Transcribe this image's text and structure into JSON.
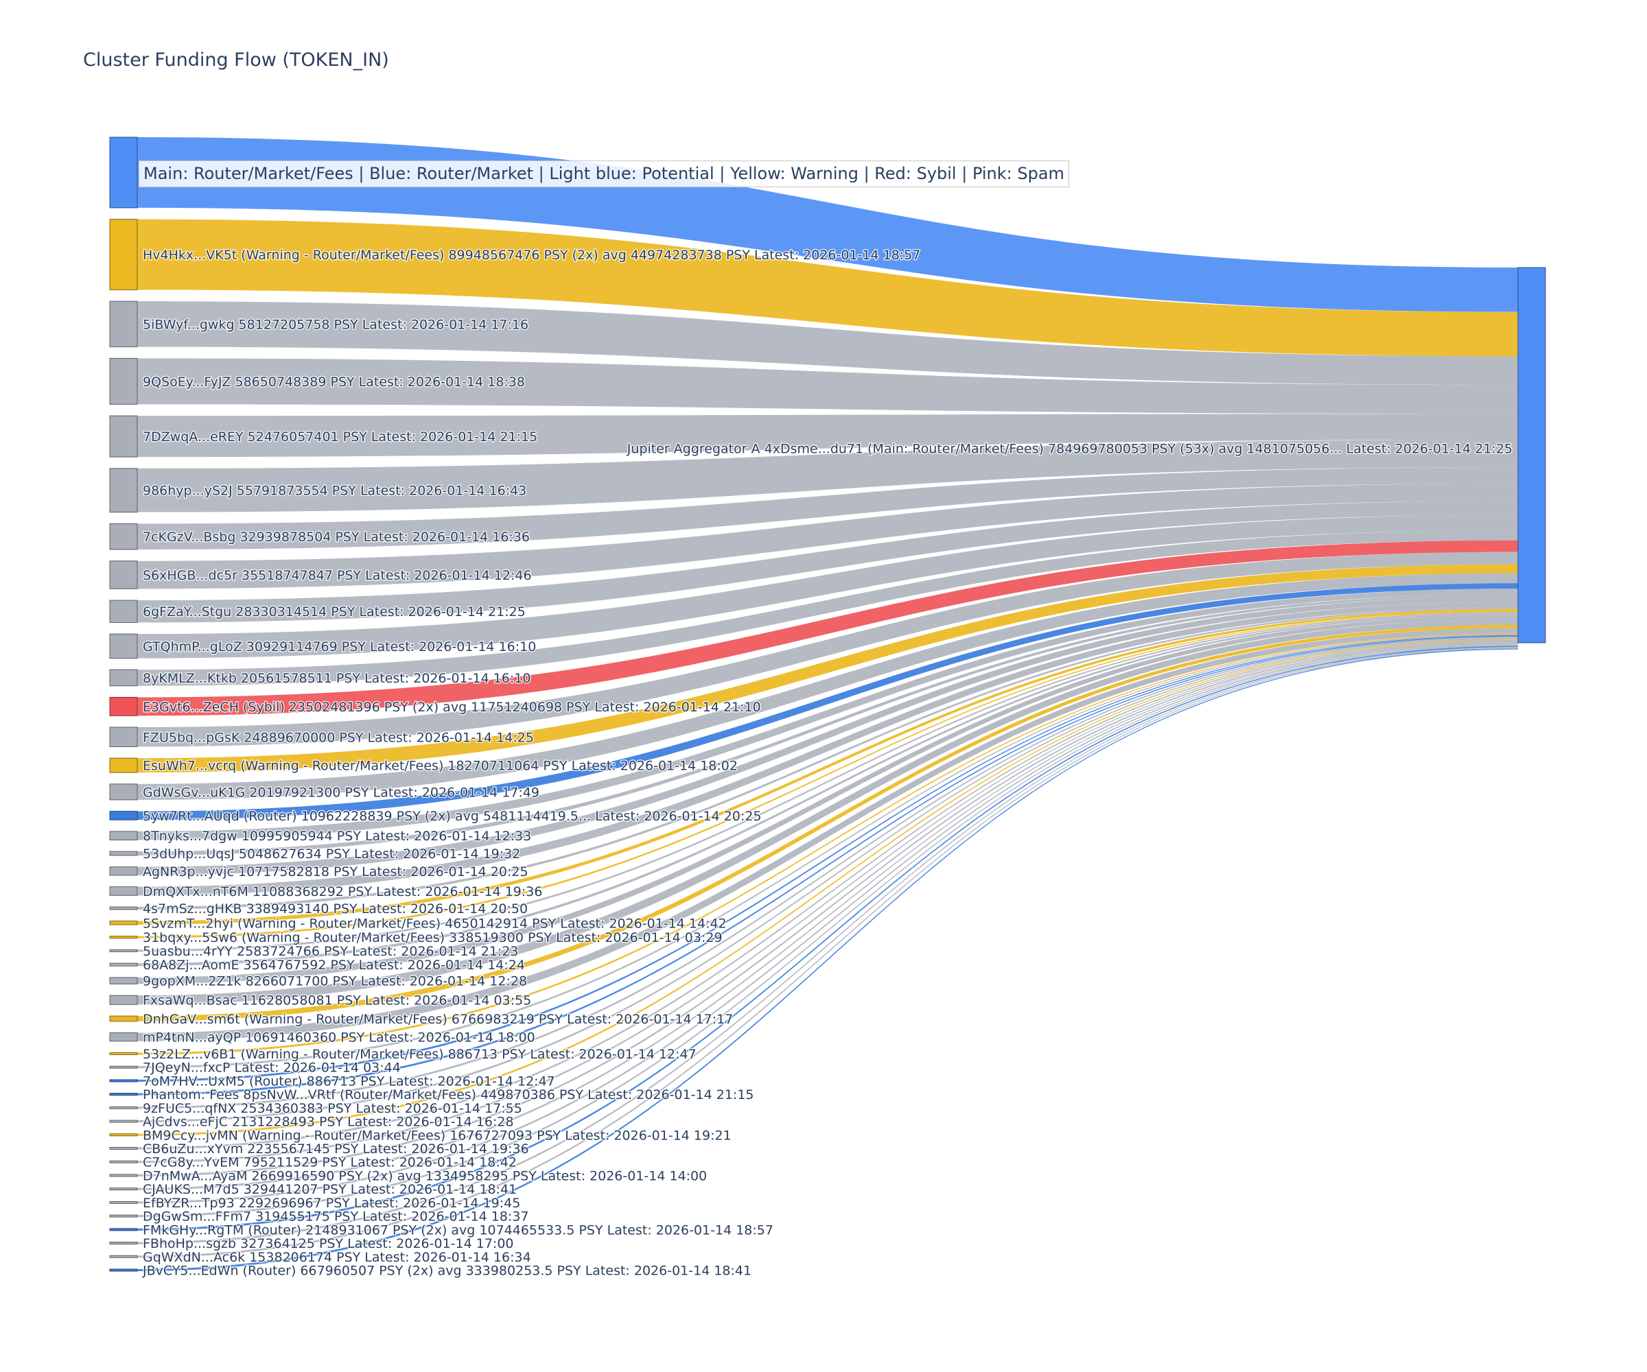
{
  "title": "Cluster Funding Flow (TOKEN_IN)",
  "legend_note": "Main: Router/Market/Fees  |  Blue: Router/Market | Light blue: Potential | Yellow: Warning | Red: Sybil | Pink: Spam",
  "colors": {
    "main": "#4f8ef5",
    "router": "#3b7ddd",
    "warning": "#ebb822",
    "sybil": "#ef5558",
    "neutral": "#a9aeb8"
  },
  "chart_data": {
    "type": "sankey",
    "target": {
      "label": "Jupiter Aggregator A 4xDsme...du71 (Main: Router/Market/Fees) 784969780053 PSY (53x) avg 1481075056... Latest: 2026-01-14 21:25",
      "category": "main"
    },
    "sources": [
      {
        "label": "",
        "value": 90000000000,
        "category": "main"
      },
      {
        "label": "Hv4Hkx...VK5t (Warning - Router/Market/Fees) 89948567476 PSY (2x) avg 44974283738 PSY Latest: 2026-01-14 18:57",
        "value": 89948567476,
        "category": "warning"
      },
      {
        "label": "5iBWyf...gwkg 58127205758 PSY Latest: 2026-01-14 17:16",
        "value": 58127205758,
        "category": "neutral"
      },
      {
        "label": "9QSoEy...FyJZ 58650748389 PSY Latest: 2026-01-14 18:38",
        "value": 58650748389,
        "category": "neutral"
      },
      {
        "label": "7DZwqA...eREY 52476057401 PSY Latest: 2026-01-14 21:15",
        "value": 52476057401,
        "category": "neutral"
      },
      {
        "label": "986hyp...yS2J 55791873554 PSY Latest: 2026-01-14 16:43",
        "value": 55791873554,
        "category": "neutral"
      },
      {
        "label": "7cKGzV...Bsbg 32939878504 PSY Latest: 2026-01-14 16:36",
        "value": 32939878504,
        "category": "neutral"
      },
      {
        "label": "S6xHGB...dc5r 35518747847 PSY Latest: 2026-01-14 12:46",
        "value": 35518747847,
        "category": "neutral"
      },
      {
        "label": "6gFZaY...Stgu 28330314514 PSY Latest: 2026-01-14 21:25",
        "value": 28330314514,
        "category": "neutral"
      },
      {
        "label": "GTQhmP...gLoZ 30929114769 PSY Latest: 2026-01-14 16:10",
        "value": 30929114769,
        "category": "neutral"
      },
      {
        "label": "8yKMLZ...Ktkb 20561578511 PSY Latest: 2026-01-14 16:10",
        "value": 20561578511,
        "category": "neutral"
      },
      {
        "label": "E3Gvt6...ZeCH (Sybil) 23502481396 PSY (2x) avg 11751240698 PSY Latest: 2026-01-14 21:10",
        "value": 23502481396,
        "category": "sybil"
      },
      {
        "label": "FZU5bq...pGsK 24889670000 PSY Latest: 2026-01-14 14:25",
        "value": 24889670000,
        "category": "neutral"
      },
      {
        "label": "EsuWh7...vcrq (Warning - Router/Market/Fees) 18270711064 PSY Latest: 2026-01-14 18:02",
        "value": 18270711064,
        "category": "warning"
      },
      {
        "label": "GdWsGv...uK1G 20197921300 PSY Latest: 2026-01-14 17:49",
        "value": 20197921300,
        "category": "neutral"
      },
      {
        "label": "5yw7Rt...AUqd (Router) 10962228839 PSY (2x) avg 5481114419.5... Latest: 2026-01-14 20:25",
        "value": 10962228839,
        "category": "router"
      },
      {
        "label": "8Tnyks...7dgw 10995905944 PSY Latest: 2026-01-14 12:33",
        "value": 10995905944,
        "category": "neutral"
      },
      {
        "label": "53dUhp...UqsJ 5048627634 PSY Latest: 2026-01-14 19:32",
        "value": 5048627634,
        "category": "neutral"
      },
      {
        "label": "AgNR3p...yvjc 10717582818 PSY Latest: 2026-01-14 20:25",
        "value": 10717582818,
        "category": "neutral"
      },
      {
        "label": "DmQXTx...nT6M 11088368292 PSY Latest: 2026-01-14 19:36",
        "value": 11088368292,
        "category": "neutral"
      },
      {
        "label": "4s7mSz...gHKB 3389493140 PSY Latest: 2026-01-14 20:50",
        "value": 3389493140,
        "category": "neutral"
      },
      {
        "label": "5SvzmT...2hyi (Warning - Router/Market/Fees) 4650142914 PSY Latest: 2026-01-14 14:42",
        "value": 4650142914,
        "category": "warning"
      },
      {
        "label": "31bqxy...5Sw6 (Warning - Router/Market/Fees) 338519300 PSY Latest: 2026-01-14 03:29",
        "value": 338519300,
        "category": "warning"
      },
      {
        "label": "5uasbu...4rYY 2583724766 PSY Latest: 2026-01-14 21:23",
        "value": 2583724766,
        "category": "neutral"
      },
      {
        "label": "68A8Zj...AomE 3564767592 PSY Latest: 2026-01-14 14:24",
        "value": 3564767592,
        "category": "neutral"
      },
      {
        "label": "9gopXM...2Z1k 8266071700 PSY Latest: 2026-01-14 12:28",
        "value": 8266071700,
        "category": "neutral"
      },
      {
        "label": "FxsaWq...Bsac 11628058081 PSY Latest: 2026-01-14 03:55",
        "value": 11628058081,
        "category": "neutral"
      },
      {
        "label": "DnhGaV...sm6t (Warning - Router/Market/Fees) 6766983219 PSY Latest: 2026-01-14 17:17",
        "value": 6766983219,
        "category": "warning"
      },
      {
        "label": "mP4tnN...ayQP 10691460360 PSY Latest: 2026-01-14 18:00",
        "value": 10691460360,
        "category": "neutral"
      },
      {
        "label": "53z2LZ...v6B1 (Warning - Router/Market/Fees) 886713 PSY Latest: 2026-01-14 12:47",
        "value": 886713,
        "category": "warning"
      },
      {
        "label": "7JQeyN...fxcP Latest: 2026-01-14 03:44",
        "value": 0,
        "category": "neutral"
      },
      {
        "label": "7oM7HV...UxM5 (Router) 886713 PSY Latest: 2026-01-14 12:47",
        "value": 886713,
        "category": "router"
      },
      {
        "label": "Phantom: Fees 8psNvW...VRtf (Router/Market/Fees) 449870386 PSY Latest: 2026-01-14 21:15",
        "value": 449870386,
        "category": "router"
      },
      {
        "label": "9zFUC5...qfNX 2534360383 PSY Latest: 2026-01-14 17:55",
        "value": 2534360383,
        "category": "neutral"
      },
      {
        "label": "AjCdvs...eFjC 2131228493 PSY Latest: 2026-01-14 16:28",
        "value": 2131228493,
        "category": "neutral"
      },
      {
        "label": "BM9Ccy...jvMN (Warning - Router/Market/Fees) 1676727093 PSY Latest: 2026-01-14 19:21",
        "value": 1676727093,
        "category": "warning"
      },
      {
        "label": "CB6uZu...xYvm 2235567145 PSY Latest: 2026-01-14 19:36",
        "value": 2235567145,
        "category": "neutral"
      },
      {
        "label": "C7cG8y...YvEM 795211529 PSY Latest: 2026-01-14 18:42",
        "value": 795211529,
        "category": "neutral"
      },
      {
        "label": "D7nMwA...AyaM 2669916590 PSY (2x) avg 1334958295 PSY Latest: 2026-01-14 14:00",
        "value": 2669916590,
        "category": "neutral"
      },
      {
        "label": "CJAUKS...M7d5 329441207 PSY Latest: 2026-01-14 18:41",
        "value": 329441207,
        "category": "neutral"
      },
      {
        "label": "EfBYZR...Tp93 2292696967 PSY Latest: 2026-01-14 19:45",
        "value": 2292696967,
        "category": "neutral"
      },
      {
        "label": "DgGwSm...FFm7 319455175 PSY Latest: 2026-01-14 18:37",
        "value": 319455175,
        "category": "neutral"
      },
      {
        "label": "FMkGHy...RgTM (Router) 2148931067 PSY (2x) avg 1074465533.5 PSY Latest: 2026-01-14 18:57",
        "value": 2148931067,
        "category": "router"
      },
      {
        "label": "FBhoHp...sgzb 327364125 PSY Latest: 2026-01-14 17:00",
        "value": 327364125,
        "category": "neutral"
      },
      {
        "label": "GqWXdN...Ac6k 1538206174 PSY Latest: 2026-01-14 16:34",
        "value": 1538206174,
        "category": "neutral"
      },
      {
        "label": "JBvCY5...EdWn (Router) 667960507 PSY (2x) avg 333980253.5 PSY Latest: 2026-01-14 18:41",
        "value": 667960507,
        "category": "router"
      }
    ]
  }
}
